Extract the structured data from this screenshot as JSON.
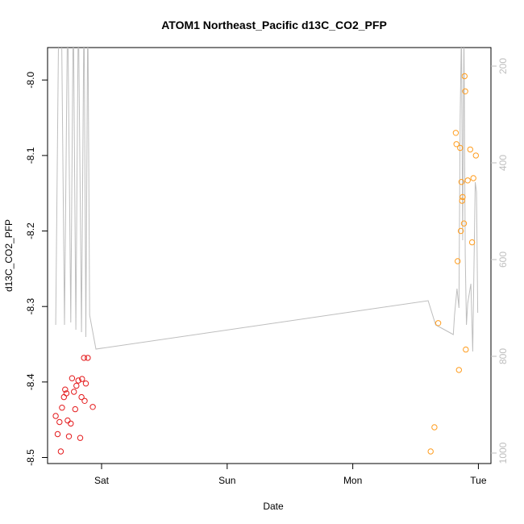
{
  "chart_data": {
    "type": "scatter",
    "title": "ATOM1 Northeast_Pacific d13C_CO2_PFP",
    "xlabel": "Date",
    "ylabel": "d13C_CO2_PFP",
    "x_tick_labels": [
      "Sat",
      "Sun",
      "Mon",
      "Tue"
    ],
    "x_tick_days": [
      1,
      2,
      3,
      4
    ],
    "xlim": [
      0.57,
      4.1
    ],
    "ylim": [
      -8.5,
      -7.98
    ],
    "y_ticks": [
      -8.0,
      -8.1,
      -8.2,
      -8.3,
      -8.4,
      -8.5
    ],
    "y_tick_labels": [
      "-8.0",
      "-8.1",
      "-8.2",
      "-8.3",
      "-8.4",
      "-8.5"
    ],
    "y2_ticks": [
      200,
      400,
      600,
      800,
      1000
    ],
    "y2_tick_labels": [
      "200",
      "400",
      "600",
      "800",
      "1000"
    ],
    "y2lim": [
      1020,
      160
    ],
    "colors": {
      "series_red": "#e41a1c",
      "series_orange": "#ff9d1f",
      "pressure_line": "#bebebe",
      "right_axis": "#bebebe"
    },
    "series": [
      {
        "color": "#e41a1c",
        "points": [
          [
            0.635,
            -8.445
          ],
          [
            0.65,
            -8.469
          ],
          [
            0.665,
            -8.453
          ],
          [
            0.675,
            -8.492
          ],
          [
            0.685,
            -8.434
          ],
          [
            0.7,
            -8.42
          ],
          [
            0.71,
            -8.41
          ],
          [
            0.72,
            -8.415
          ],
          [
            0.73,
            -8.451
          ],
          [
            0.74,
            -8.472
          ],
          [
            0.755,
            -8.455
          ],
          [
            0.765,
            -8.395
          ],
          [
            0.78,
            -8.413
          ],
          [
            0.79,
            -8.436
          ],
          [
            0.8,
            -8.405
          ],
          [
            0.815,
            -8.398
          ],
          [
            0.83,
            -8.474
          ],
          [
            0.84,
            -8.42
          ],
          [
            0.845,
            -8.396
          ],
          [
            0.86,
            -8.368
          ],
          [
            0.865,
            -8.425
          ],
          [
            0.875,
            -8.402
          ],
          [
            0.89,
            -8.368
          ],
          [
            0.93,
            -8.433
          ]
        ]
      },
      {
        "color": "#ff9d1f",
        "points": [
          [
            3.62,
            -8.492
          ],
          [
            3.65,
            -8.46
          ],
          [
            3.68,
            -8.322
          ],
          [
            3.82,
            -8.07
          ],
          [
            3.825,
            -8.085
          ],
          [
            3.835,
            -8.24
          ],
          [
            3.845,
            -8.384
          ],
          [
            3.855,
            -8.09
          ],
          [
            3.86,
            -8.2
          ],
          [
            3.865,
            -8.135
          ],
          [
            3.87,
            -8.16
          ],
          [
            3.875,
            -8.155
          ],
          [
            3.885,
            -8.19
          ],
          [
            3.89,
            -7.995
          ],
          [
            3.895,
            -8.015
          ],
          [
            3.9,
            -8.357
          ],
          [
            3.915,
            -8.133
          ],
          [
            3.935,
            -8.092
          ],
          [
            3.95,
            -8.215
          ],
          [
            3.96,
            -8.13
          ],
          [
            3.98,
            -8.1
          ]
        ]
      }
    ],
    "pressure_line": {
      "axis": "right",
      "points": [
        [
          0.635,
          735
        ],
        [
          0.66,
          70
        ],
        [
          0.68,
          70
        ],
        [
          0.705,
          735
        ],
        [
          0.73,
          70
        ],
        [
          0.755,
          730
        ],
        [
          0.775,
          70
        ],
        [
          0.795,
          745
        ],
        [
          0.815,
          70
        ],
        [
          0.84,
          750
        ],
        [
          0.86,
          70
        ],
        [
          0.875,
          760
        ],
        [
          0.89,
          70
        ],
        [
          0.905,
          715
        ],
        [
          0.955,
          785
        ],
        [
          3.6,
          685
        ],
        [
          3.66,
          735
        ],
        [
          3.8,
          755
        ],
        [
          3.81,
          715
        ],
        [
          3.83,
          660
        ],
        [
          3.845,
          700
        ],
        [
          3.855,
          310
        ],
        [
          3.865,
          120
        ],
        [
          3.875,
          560
        ],
        [
          3.885,
          120
        ],
        [
          3.895,
          590
        ],
        [
          3.905,
          735
        ],
        [
          3.915,
          690
        ],
        [
          3.94,
          650
        ],
        [
          3.955,
          790
        ],
        [
          3.965,
          610
        ],
        [
          3.975,
          440
        ],
        [
          3.985,
          460
        ],
        [
          3.995,
          710
        ]
      ]
    }
  }
}
